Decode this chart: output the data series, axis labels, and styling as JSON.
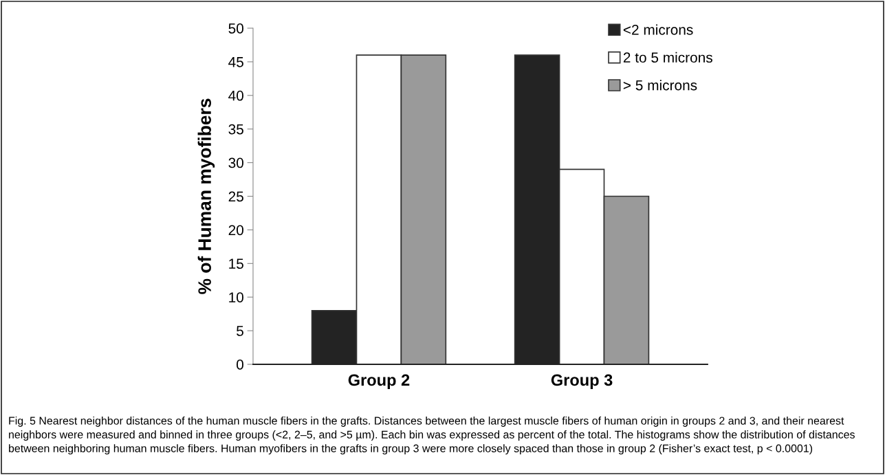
{
  "chart_data": {
    "type": "bar",
    "ylabel": "% of Human myofibers",
    "categories": [
      "Group 2",
      "Group 3"
    ],
    "series": [
      {
        "name": "<2 microns",
        "color": "#232323",
        "values": [
          8,
          46
        ]
      },
      {
        "name": "2 to 5 microns",
        "color": "#ffffff",
        "values": [
          46,
          29
        ]
      },
      {
        "name": "> 5 microns",
        "color": "#9a9a9a",
        "values": [
          46,
          25
        ]
      }
    ],
    "ylim": [
      0,
      50
    ],
    "yticks": [
      0,
      5,
      10,
      15,
      20,
      25,
      30,
      35,
      40,
      45,
      50
    ],
    "grid": false,
    "legend": "top right",
    "annotations": [
      "Fig. 5 Nearest neighbor distances of the human muscle fibers in the grafts. Distances between the largest muscle fibers of human origin in groups 2 and 3, and their nearest neighbors were measured and binned in three groups (<2, 2–5, and >5 µm). Each bin was expressed as percent of the total. The histograms show the distribution of distances between neighboring human muscle fibers. Human myofibers in the grafts in group 3 were more closely spaced than those in group 2 (Fisher’s exact test, p < 0.0001)"
    ]
  }
}
